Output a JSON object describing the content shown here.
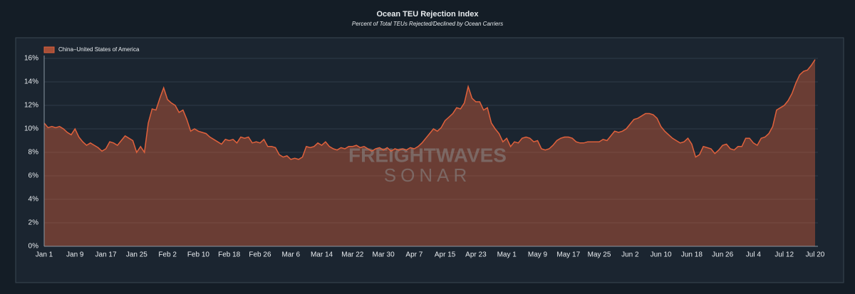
{
  "chart_data": {
    "type": "area",
    "title": "Ocean TEU Rejection Index",
    "subtitle": "Percent of Total TEUs Rejected/Declined by Ocean Carriers",
    "watermark": [
      "FREIGHTWAVES",
      "SONAR"
    ],
    "categories": [
      "Jan 1",
      null,
      null,
      null,
      null,
      null,
      null,
      null,
      "Jan 9",
      null,
      null,
      null,
      null,
      null,
      null,
      null,
      "Jan 17",
      null,
      null,
      null,
      null,
      null,
      null,
      null,
      "Jan 25",
      null,
      null,
      null,
      null,
      null,
      null,
      null,
      "Feb 2",
      null,
      null,
      null,
      null,
      null,
      null,
      null,
      "Feb 10",
      null,
      null,
      null,
      null,
      null,
      null,
      null,
      "Feb 18",
      null,
      null,
      null,
      null,
      null,
      null,
      null,
      "Feb 26",
      null,
      null,
      null,
      null,
      null,
      null,
      null,
      "Mar 6",
      null,
      null,
      null,
      null,
      null,
      null,
      null,
      "Mar 14",
      null,
      null,
      null,
      null,
      null,
      null,
      null,
      "Mar 22",
      null,
      null,
      null,
      null,
      null,
      null,
      null,
      "Mar 30",
      null,
      null,
      null,
      null,
      null,
      null,
      null,
      "Apr 7",
      null,
      null,
      null,
      null,
      null,
      null,
      null,
      "Apr 15",
      null,
      null,
      null,
      null,
      null,
      null,
      null,
      "Apr 23",
      null,
      null,
      null,
      null,
      null,
      null,
      null,
      "May 1",
      null,
      null,
      null,
      null,
      null,
      null,
      null,
      "May 9",
      null,
      null,
      null,
      null,
      null,
      null,
      null,
      "May 17",
      null,
      null,
      null,
      null,
      null,
      null,
      null,
      "May 25",
      null,
      null,
      null,
      null,
      null,
      null,
      null,
      "Jun 2",
      null,
      null,
      null,
      null,
      null,
      null,
      null,
      "Jun 10",
      null,
      null,
      null,
      null,
      null,
      null,
      null,
      "Jun 18",
      null,
      null,
      null,
      null,
      null,
      null,
      null,
      "Jun 26",
      null,
      null,
      null,
      null,
      null,
      null,
      null,
      "Jul 4",
      null,
      null,
      null,
      null,
      null,
      null,
      null,
      "Jul 12",
      null,
      null,
      null,
      null,
      null,
      null,
      null,
      "Jul 20"
    ],
    "series": [
      {
        "name": "China–United States of America",
        "color": "#e0613c",
        "values": [
          10.5,
          10.1,
          10.2,
          10.1,
          10.2,
          10.0,
          9.7,
          9.5,
          10.0,
          9.3,
          8.9,
          8.6,
          8.8,
          8.6,
          8.4,
          8.1,
          8.3,
          8.9,
          8.8,
          8.6,
          9.0,
          9.4,
          9.2,
          9.0,
          8.0,
          8.5,
          8.0,
          10.5,
          11.7,
          11.6,
          12.6,
          13.5,
          12.5,
          12.2,
          12.0,
          11.4,
          11.6,
          10.8,
          9.8,
          10.0,
          9.8,
          9.7,
          9.6,
          9.3,
          9.1,
          8.9,
          8.7,
          9.1,
          9.0,
          9.1,
          8.8,
          9.3,
          9.2,
          9.3,
          8.8,
          8.9,
          8.8,
          9.1,
          8.5,
          8.5,
          8.4,
          7.8,
          7.6,
          7.7,
          7.4,
          7.5,
          7.4,
          7.6,
          8.5,
          8.4,
          8.5,
          8.8,
          8.6,
          8.9,
          8.5,
          8.3,
          8.2,
          8.4,
          8.3,
          8.5,
          8.5,
          8.6,
          8.4,
          8.5,
          8.3,
          8.1,
          8.3,
          8.4,
          8.2,
          8.4,
          8.1,
          8.3,
          8.2,
          8.3,
          8.2,
          8.4,
          8.3,
          8.5,
          8.8,
          9.2,
          9.6,
          10.0,
          9.8,
          10.1,
          10.7,
          11.0,
          11.3,
          11.8,
          11.7,
          12.2,
          13.6,
          12.6,
          12.3,
          12.3,
          11.6,
          11.8,
          10.5,
          10.0,
          9.6,
          8.9,
          9.2,
          8.5,
          8.9,
          8.8,
          9.2,
          9.3,
          9.2,
          8.9,
          9.0,
          8.3,
          8.2,
          8.3,
          8.6,
          9.0,
          9.2,
          9.3,
          9.3,
          9.2,
          8.9,
          8.8,
          8.8,
          8.9,
          8.9,
          8.9,
          8.9,
          9.1,
          9.0,
          9.4,
          9.8,
          9.7,
          9.8,
          10.0,
          10.4,
          10.8,
          10.9,
          11.1,
          11.3,
          11.3,
          11.2,
          10.9,
          10.2,
          9.8,
          9.5,
          9.2,
          9.0,
          8.8,
          8.9,
          9.2,
          8.7,
          7.6,
          7.8,
          8.5,
          8.4,
          8.3,
          7.9,
          8.2,
          8.6,
          8.7,
          8.3,
          8.2,
          8.5,
          8.5,
          9.2,
          9.2,
          8.8,
          8.6,
          9.2,
          9.3,
          9.6,
          10.2,
          11.6,
          11.8,
          12.0,
          12.4,
          13.0,
          13.9,
          14.6,
          14.9,
          15.0,
          15.4,
          15.9
        ]
      }
    ],
    "ylim": [
      0,
      16
    ],
    "yticks": [
      {
        "value": 0,
        "label": "0%"
      },
      {
        "value": 2,
        "label": "2%"
      },
      {
        "value": 4,
        "label": "4%"
      },
      {
        "value": 6,
        "label": "6%"
      },
      {
        "value": 8,
        "label": "8%"
      },
      {
        "value": 10,
        "label": "10%"
      },
      {
        "value": 12,
        "label": "12%"
      },
      {
        "value": 14,
        "label": "14%"
      },
      {
        "value": 16,
        "label": "16%"
      }
    ],
    "grid": true,
    "legend": "top-left"
  }
}
